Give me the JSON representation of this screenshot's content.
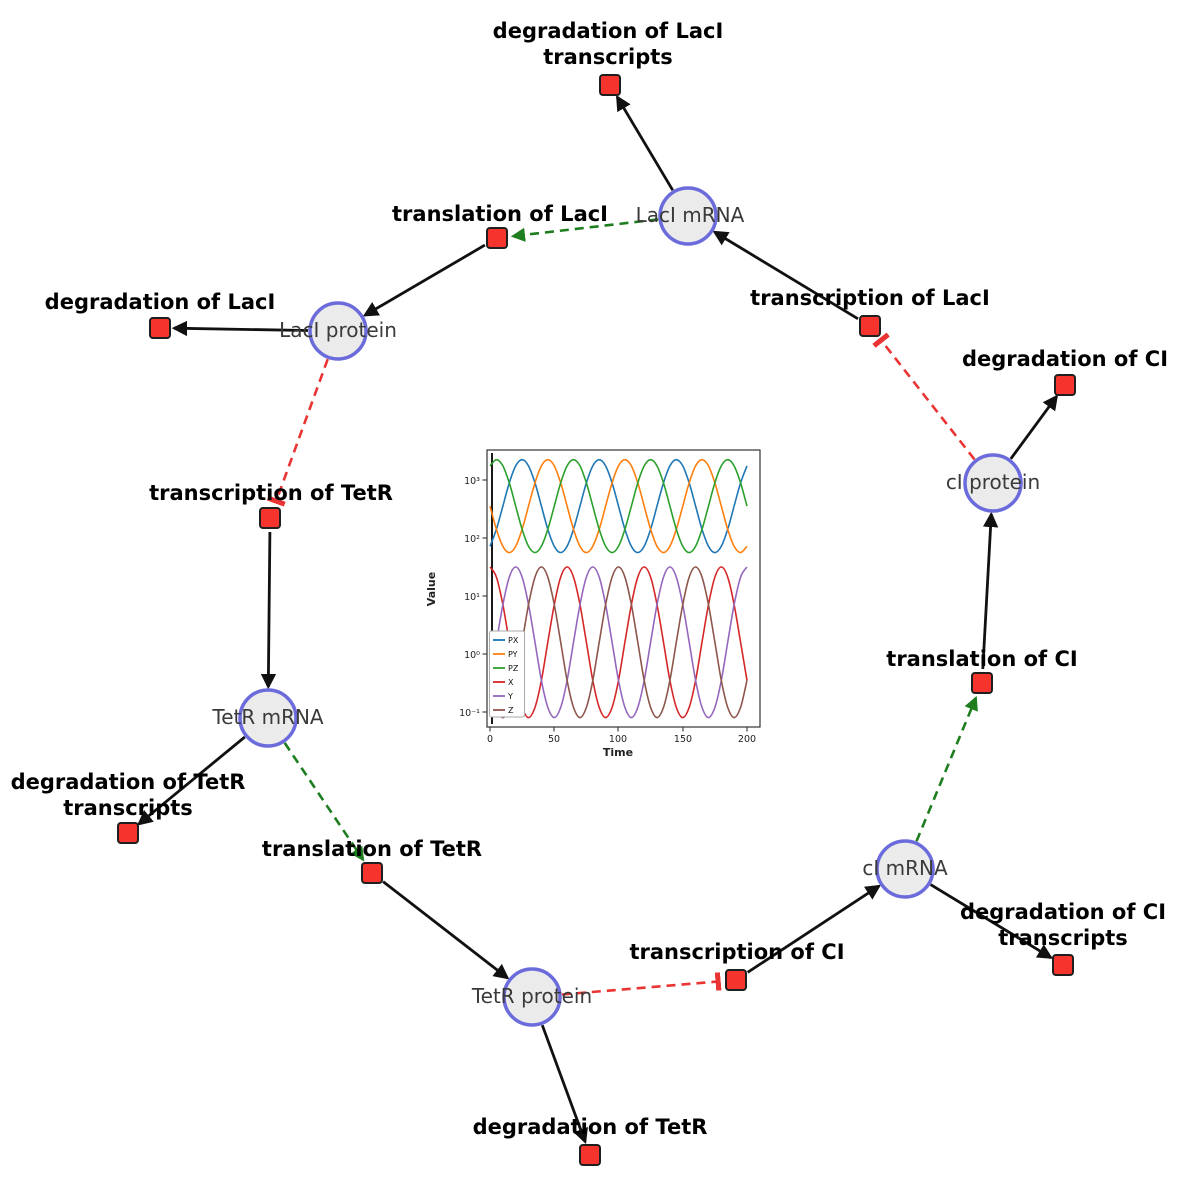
{
  "diagram": {
    "species": [
      {
        "id": "laci-mrna",
        "label": "LacI mRNA"
      },
      {
        "id": "laci-protein",
        "label": "LacI protein"
      },
      {
        "id": "tetr-mrna",
        "label": "TetR mRNA"
      },
      {
        "id": "tetr-protein",
        "label": "TetR protein"
      },
      {
        "id": "ci-mrna",
        "label": "cI mRNA"
      },
      {
        "id": "ci-protein",
        "label": "cI protein"
      }
    ],
    "reactions": [
      {
        "id": "degradation-of-laci-transcripts",
        "lines": [
          "degradation of LacI",
          "transcripts"
        ]
      },
      {
        "id": "translation-of-laci",
        "lines": [
          "translation of LacI"
        ]
      },
      {
        "id": "degradation-of-laci",
        "lines": [
          "degradation of LacI"
        ]
      },
      {
        "id": "transcription-of-laci",
        "lines": [
          "transcription of LacI"
        ]
      },
      {
        "id": "degradation-of-ci",
        "lines": [
          "degradation of CI"
        ]
      },
      {
        "id": "transcription-of-tetr",
        "lines": [
          "transcription of TetR"
        ]
      },
      {
        "id": "degradation-of-tetr-transcripts",
        "lines": [
          "degradation of TetR",
          "transcripts"
        ]
      },
      {
        "id": "translation-of-tetr",
        "lines": [
          "translation of TetR"
        ]
      },
      {
        "id": "degradation-of-tetr",
        "lines": [
          "degradation of TetR"
        ]
      },
      {
        "id": "transcription-of-ci",
        "lines": [
          "transcription of CI"
        ]
      },
      {
        "id": "degradation-of-ci-transcripts",
        "lines": [
          "degradation of CI",
          "transcripts"
        ]
      },
      {
        "id": "translation-of-ci",
        "lines": [
          "translation of CI"
        ]
      }
    ],
    "edges": [
      {
        "from": "LacI mRNA",
        "to": "degradation of LacI transcripts",
        "type": "consumption"
      },
      {
        "from": "LacI mRNA",
        "to": "translation of LacI",
        "type": "modifier"
      },
      {
        "from": "translation of LacI",
        "to": "LacI protein",
        "type": "production"
      },
      {
        "from": "transcription of LacI",
        "to": "LacI mRNA",
        "type": "production"
      },
      {
        "from": "cI protein",
        "to": "transcription of LacI",
        "type": "inhibition"
      },
      {
        "from": "LacI protein",
        "to": "degradation of LacI",
        "type": "consumption"
      },
      {
        "from": "LacI protein",
        "to": "transcription of TetR",
        "type": "inhibition"
      },
      {
        "from": "transcription of TetR",
        "to": "TetR mRNA",
        "type": "production"
      },
      {
        "from": "TetR mRNA",
        "to": "degradation of TetR transcripts",
        "type": "consumption"
      },
      {
        "from": "TetR mRNA",
        "to": "translation of TetR",
        "type": "modifier"
      },
      {
        "from": "translation of TetR",
        "to": "TetR protein",
        "type": "production"
      },
      {
        "from": "TetR protein",
        "to": "degradation of TetR",
        "type": "consumption"
      },
      {
        "from": "TetR protein",
        "to": "transcription of CI",
        "type": "inhibition"
      },
      {
        "from": "transcription of CI",
        "to": "cI mRNA",
        "type": "production"
      },
      {
        "from": "cI mRNA",
        "to": "degradation of CI transcripts",
        "type": "consumption"
      },
      {
        "from": "cI mRNA",
        "to": "translation of CI",
        "type": "modifier"
      },
      {
        "from": "translation of CI",
        "to": "cI protein",
        "type": "production"
      },
      {
        "from": "cI protein",
        "to": "degradation of CI",
        "type": "consumption"
      }
    ]
  },
  "colors": {
    "species_fill": "#ebebeb",
    "species_border": "#6b6bdb",
    "reaction_fill": "#f5352d",
    "reaction_border": "#1f1f1f",
    "edge_production": "#111111",
    "edge_modifier": "#1e7d1e",
    "edge_inhibition": "#ea3434"
  },
  "chart_data": {
    "type": "line",
    "title": "",
    "xlabel": "Time",
    "ylabel": "Value",
    "y_scale": "log",
    "xlim": [
      0,
      200
    ],
    "ylim": [
      0.1,
      1000
    ],
    "xtick_labels": [
      "0",
      "50",
      "100",
      "150",
      "200"
    ],
    "ytick_labels": [
      "10⁻¹",
      "10⁰",
      "10¹",
      "10²",
      "10³"
    ],
    "legend_position": "lower left",
    "x": [
      0,
      5,
      10,
      15,
      20,
      25,
      30,
      35,
      40,
      45,
      50,
      55,
      60,
      65,
      70,
      75,
      80,
      85,
      90,
      95,
      100,
      105,
      110,
      115,
      120,
      125,
      130,
      135,
      140,
      145,
      150,
      155,
      160,
      165,
      170,
      175,
      180,
      185,
      190,
      195,
      200
    ],
    "series": [
      {
        "name": "PX",
        "color": "#1f77b4",
        "values": [
          72,
          141,
          355,
          891,
          1750,
          2239,
          1750,
          891,
          355,
          141,
          72,
          56,
          72,
          141,
          355,
          891,
          1750,
          2239,
          1750,
          891,
          355,
          141,
          72,
          56,
          72,
          141,
          355,
          891,
          1750,
          2239,
          1750,
          891,
          355,
          141,
          72,
          56,
          72,
          141,
          355,
          891,
          1750
        ]
      },
      {
        "name": "PY",
        "color": "#ff7f0e",
        "values": [
          355,
          141,
          72,
          56,
          72,
          141,
          355,
          891,
          1750,
          2239,
          1750,
          891,
          355,
          141,
          72,
          56,
          72,
          141,
          355,
          891,
          1750,
          2239,
          1750,
          891,
          355,
          141,
          72,
          56,
          72,
          141,
          355,
          891,
          1750,
          2239,
          1750,
          891,
          355,
          141,
          72,
          56,
          72
        ]
      },
      {
        "name": "PZ",
        "color": "#2ca02c",
        "values": [
          1750,
          2239,
          1750,
          891,
          355,
          141,
          72,
          56,
          72,
          141,
          355,
          891,
          1750,
          2239,
          1750,
          891,
          355,
          141,
          72,
          56,
          72,
          141,
          355,
          891,
          1750,
          2239,
          1750,
          891,
          355,
          141,
          72,
          56,
          72,
          141,
          355,
          891,
          1750,
          2239,
          1750,
          891,
          355
        ]
      },
      {
        "name": "X",
        "color": "#d62728",
        "values": [
          31.6,
          21.2,
          7.1,
          1.6,
          0.35,
          0.12,
          0.08,
          0.12,
          0.35,
          1.6,
          7.1,
          21.2,
          31.6,
          21.2,
          7.1,
          1.6,
          0.35,
          0.12,
          0.08,
          0.12,
          0.35,
          1.6,
          7.1,
          21.2,
          31.6,
          21.2,
          7.1,
          1.6,
          0.35,
          0.12,
          0.08,
          0.12,
          0.35,
          1.6,
          7.1,
          21.2,
          31.6,
          21.2,
          7.1,
          1.6,
          0.35
        ]
      },
      {
        "name": "Y",
        "color": "#9467bd",
        "values": [
          0.35,
          1.6,
          7.1,
          21.2,
          31.6,
          21.2,
          7.1,
          1.6,
          0.35,
          0.12,
          0.08,
          0.12,
          0.35,
          1.6,
          7.1,
          21.2,
          31.6,
          21.2,
          7.1,
          1.6,
          0.35,
          0.12,
          0.08,
          0.12,
          0.35,
          1.6,
          7.1,
          21.2,
          31.6,
          21.2,
          7.1,
          1.6,
          0.35,
          0.12,
          0.08,
          0.12,
          0.35,
          1.6,
          7.1,
          21.2,
          31.6
        ]
      },
      {
        "name": "Z",
        "color": "#8c564b",
        "values": [
          0.35,
          0.12,
          0.08,
          0.12,
          0.35,
          1.6,
          7.1,
          21.2,
          31.6,
          21.2,
          7.1,
          1.6,
          0.35,
          0.12,
          0.08,
          0.12,
          0.35,
          1.6,
          7.1,
          21.2,
          31.6,
          21.2,
          7.1,
          1.6,
          0.35,
          0.12,
          0.08,
          0.12,
          0.35,
          1.6,
          7.1,
          21.2,
          31.6,
          21.2,
          7.1,
          1.6,
          0.35,
          0.12,
          0.08,
          0.12,
          0.35
        ]
      }
    ]
  }
}
